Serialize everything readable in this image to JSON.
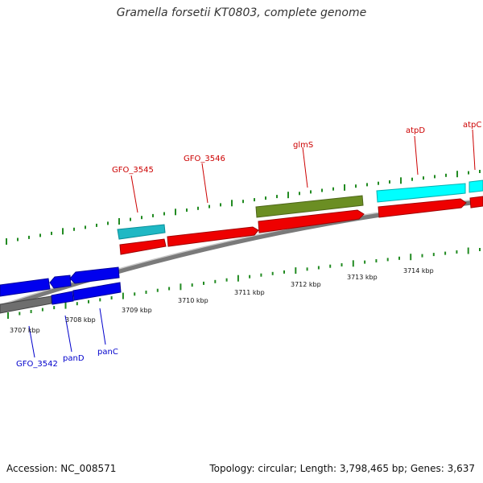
{
  "title": "Gramella forsetii KT0803, complete genome",
  "footer": {
    "accession": "Accession: NC_008571",
    "summary": "Topology: circular; Length: 3,798,465 bp; Genes: 3,637"
  },
  "colors": {
    "cds": "#ff0000",
    "rna": "#00ffff",
    "other": "#6b8e23",
    "reverse_cds": "#0000ff",
    "backbone": "#808080",
    "tick": "#228b22",
    "forward_label": "#cc0000",
    "reverse_label": "#0000cc"
  },
  "scale_labels": [
    "3707 kbp",
    "3708 kbp",
    "3709 kbp",
    "3710 kbp",
    "3711 kbp",
    "3712 kbp",
    "3713 kbp",
    "3714 kbp"
  ],
  "gene_labels": {
    "forward": [
      "GFO_3545",
      "GFO_3546",
      "glmS",
      "atpD",
      "atpC"
    ],
    "reverse": [
      "GFO_3542",
      "panD",
      "panC"
    ]
  }
}
